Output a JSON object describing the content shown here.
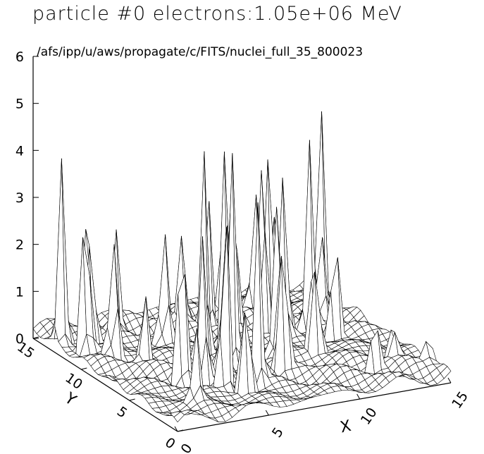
{
  "chart_data": {
    "type": "surface",
    "title": "particle #0 electrons:1.05e+06 MeV",
    "subtitle": "/afs/ipp/u/aws/propagate/c/FITS/nuclei_full_35_800023",
    "xlabel": "X",
    "ylabel": "Y",
    "z_ticks": [
      "0",
      "1",
      "2",
      "3",
      "4",
      "5",
      "6"
    ],
    "x_ticks": [
      "0",
      "5",
      "10",
      "15"
    ],
    "y_ticks": [
      "0",
      "5",
      "10",
      "15"
    ],
    "xlim": [
      0,
      15
    ],
    "ylim": [
      0,
      15
    ],
    "zlim": [
      0,
      6
    ],
    "grid_size": 40,
    "peaks": [
      {
        "x": 0.4,
        "y": 12.8,
        "z": 4.1
      },
      {
        "x": 0.9,
        "y": 11.2,
        "z": 3.7
      },
      {
        "x": 1.6,
        "y": 12.2,
        "z": 4.9
      },
      {
        "x": 1.8,
        "y": 10.0,
        "z": 3.3
      },
      {
        "x": 2.6,
        "y": 8.4,
        "z": 2.1
      },
      {
        "x": 3.2,
        "y": 5.6,
        "z": 3.7
      },
      {
        "x": 3.8,
        "y": 4.4,
        "z": 3.9
      },
      {
        "x": 4.4,
        "y": 3.4,
        "z": 4.2
      },
      {
        "x": 5.2,
        "y": 5.0,
        "z": 4.1
      },
      {
        "x": 5.6,
        "y": 7.8,
        "z": 4.8
      },
      {
        "x": 5.0,
        "y": 2.4,
        "z": 3.3
      },
      {
        "x": 6.4,
        "y": 6.4,
        "z": 4.4
      },
      {
        "x": 6.0,
        "y": 3.0,
        "z": 3.8
      },
      {
        "x": 7.2,
        "y": 8.6,
        "z": 4.5
      },
      {
        "x": 8.4,
        "y": 10.2,
        "z": 3.9
      },
      {
        "x": 8.0,
        "y": 4.2,
        "z": 3.4
      },
      {
        "x": 9.0,
        "y": 6.6,
        "z": 4.4
      },
      {
        "x": 9.8,
        "y": 9.6,
        "z": 5.3
      },
      {
        "x": 10.2,
        "y": 8.2,
        "z": 3.8
      },
      {
        "x": 10.6,
        "y": 5.8,
        "z": 3.4
      },
      {
        "x": 10.6,
        "y": 10.6,
        "z": 4.9
      },
      {
        "x": 11.4,
        "y": 11.4,
        "z": 4.5
      },
      {
        "x": 12.0,
        "y": 9.0,
        "z": 3.9
      },
      {
        "x": 12.6,
        "y": 7.6,
        "z": 3.0
      },
      {
        "x": 13.4,
        "y": 10.4,
        "z": 2.3
      },
      {
        "x": 14.2,
        "y": 12.0,
        "z": 4.2
      },
      {
        "x": 11.2,
        "y": 13.2,
        "z": 2.6
      },
      {
        "x": 7.8,
        "y": 11.6,
        "z": 3.0
      },
      {
        "x": 4.8,
        "y": 10.4,
        "z": 2.8
      },
      {
        "x": 3.4,
        "y": 12.8,
        "z": 2.2
      },
      {
        "x": 14.8,
        "y": 1.8,
        "z": 0.8
      },
      {
        "x": 13.6,
        "y": 3.2,
        "z": 1.2
      },
      {
        "x": 12.2,
        "y": 2.6,
        "z": 1.4
      },
      {
        "x": 2.2,
        "y": 2.2,
        "z": 1.6
      },
      {
        "x": 6.8,
        "y": 12.4,
        "z": 1.8
      },
      {
        "x": 9.4,
        "y": 13.0,
        "z": 2.0
      }
    ]
  }
}
